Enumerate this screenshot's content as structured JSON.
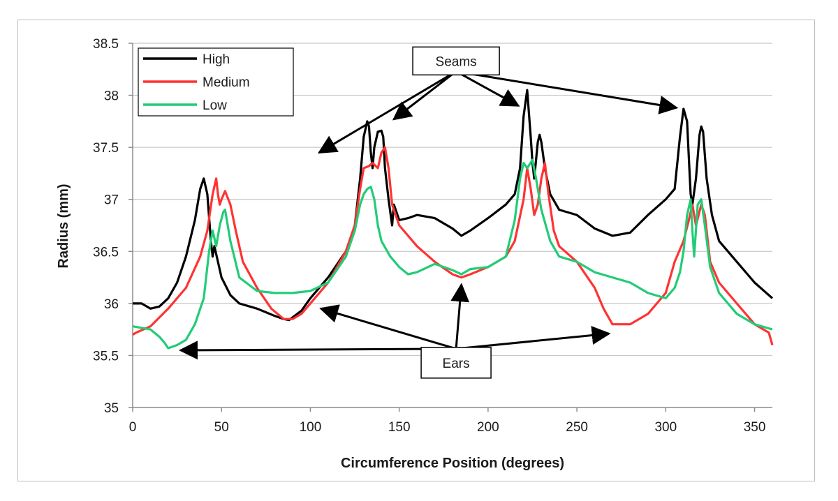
{
  "chart_data": {
    "type": "line",
    "title": "",
    "xlabel": "Circumference Position (degrees)",
    "ylabel": "Radius (mm)",
    "xlim": [
      0,
      360
    ],
    "ylim": [
      35,
      38.5
    ],
    "xticks": [
      0,
      50,
      100,
      150,
      200,
      250,
      300,
      350
    ],
    "yticks": [
      35,
      35.5,
      36,
      36.5,
      37,
      37.5,
      38,
      38.5
    ],
    "grid": "horizontal",
    "legend_position": "top-left",
    "series": [
      {
        "name": "High",
        "color": "#000000",
        "points": [
          [
            0,
            36.0
          ],
          [
            5,
            36.0
          ],
          [
            10,
            35.95
          ],
          [
            15,
            35.97
          ],
          [
            20,
            36.05
          ],
          [
            25,
            36.2
          ],
          [
            30,
            36.45
          ],
          [
            35,
            36.8
          ],
          [
            38,
            37.1
          ],
          [
            40,
            37.2
          ],
          [
            42,
            37.05
          ],
          [
            44,
            36.6
          ],
          [
            45,
            36.45
          ],
          [
            46,
            36.55
          ],
          [
            48,
            36.4
          ],
          [
            50,
            36.25
          ],
          [
            55,
            36.08
          ],
          [
            60,
            36.0
          ],
          [
            70,
            35.95
          ],
          [
            80,
            35.88
          ],
          [
            85,
            35.85
          ],
          [
            88,
            35.84
          ],
          [
            95,
            35.93
          ],
          [
            100,
            36.05
          ],
          [
            110,
            36.25
          ],
          [
            120,
            36.5
          ],
          [
            125,
            36.75
          ],
          [
            128,
            37.2
          ],
          [
            130,
            37.6
          ],
          [
            132,
            37.75
          ],
          [
            133,
            37.7
          ],
          [
            134,
            37.45
          ],
          [
            135,
            37.3
          ],
          [
            136,
            37.5
          ],
          [
            138,
            37.65
          ],
          [
            140,
            37.66
          ],
          [
            141,
            37.6
          ],
          [
            142,
            37.3
          ],
          [
            144,
            37.0
          ],
          [
            146,
            36.75
          ],
          [
            147,
            36.95
          ],
          [
            150,
            36.8
          ],
          [
            155,
            36.82
          ],
          [
            160,
            36.85
          ],
          [
            170,
            36.82
          ],
          [
            180,
            36.72
          ],
          [
            185,
            36.65
          ],
          [
            190,
            36.7
          ],
          [
            200,
            36.82
          ],
          [
            210,
            36.95
          ],
          [
            215,
            37.05
          ],
          [
            218,
            37.3
          ],
          [
            220,
            37.8
          ],
          [
            222,
            38.05
          ],
          [
            224,
            37.6
          ],
          [
            225,
            37.35
          ],
          [
            226,
            37.2
          ],
          [
            228,
            37.55
          ],
          [
            229,
            37.62
          ],
          [
            230,
            37.55
          ],
          [
            232,
            37.3
          ],
          [
            235,
            37.05
          ],
          [
            240,
            36.9
          ],
          [
            250,
            36.85
          ],
          [
            260,
            36.72
          ],
          [
            270,
            36.65
          ],
          [
            280,
            36.68
          ],
          [
            290,
            36.85
          ],
          [
            300,
            37.0
          ],
          [
            305,
            37.1
          ],
          [
            308,
            37.6
          ],
          [
            310,
            37.87
          ],
          [
            312,
            37.75
          ],
          [
            313,
            37.4
          ],
          [
            314,
            37.05
          ],
          [
            315,
            36.95
          ],
          [
            317,
            37.2
          ],
          [
            319,
            37.62
          ],
          [
            320,
            37.7
          ],
          [
            321,
            37.65
          ],
          [
            323,
            37.2
          ],
          [
            326,
            36.85
          ],
          [
            330,
            36.6
          ],
          [
            340,
            36.4
          ],
          [
            350,
            36.2
          ],
          [
            360,
            36.05
          ]
        ]
      },
      {
        "name": "Medium",
        "color": "#ff3333",
        "points": [
          [
            0,
            35.7
          ],
          [
            2,
            35.72
          ],
          [
            10,
            35.78
          ],
          [
            20,
            35.95
          ],
          [
            30,
            36.15
          ],
          [
            38,
            36.45
          ],
          [
            42,
            36.7
          ],
          [
            45,
            37.05
          ],
          [
            47,
            37.2
          ],
          [
            48,
            37.05
          ],
          [
            49,
            36.95
          ],
          [
            50,
            37.0
          ],
          [
            52,
            37.08
          ],
          [
            55,
            36.95
          ],
          [
            58,
            36.7
          ],
          [
            62,
            36.4
          ],
          [
            70,
            36.15
          ],
          [
            78,
            35.95
          ],
          [
            85,
            35.85
          ],
          [
            90,
            35.85
          ],
          [
            95,
            35.9
          ],
          [
            100,
            36.0
          ],
          [
            110,
            36.2
          ],
          [
            120,
            36.5
          ],
          [
            125,
            36.75
          ],
          [
            128,
            37.1
          ],
          [
            130,
            37.3
          ],
          [
            133,
            37.32
          ],
          [
            135,
            37.35
          ],
          [
            138,
            37.3
          ],
          [
            140,
            37.45
          ],
          [
            142,
            37.5
          ],
          [
            144,
            37.3
          ],
          [
            146,
            36.95
          ],
          [
            150,
            36.75
          ],
          [
            160,
            36.55
          ],
          [
            170,
            36.4
          ],
          [
            180,
            36.28
          ],
          [
            185,
            36.25
          ],
          [
            190,
            36.28
          ],
          [
            200,
            36.35
          ],
          [
            210,
            36.45
          ],
          [
            215,
            36.6
          ],
          [
            220,
            37.0
          ],
          [
            222,
            37.3
          ],
          [
            224,
            37.1
          ],
          [
            226,
            36.85
          ],
          [
            228,
            36.95
          ],
          [
            230,
            37.2
          ],
          [
            232,
            37.35
          ],
          [
            234,
            37.05
          ],
          [
            237,
            36.7
          ],
          [
            240,
            36.55
          ],
          [
            250,
            36.4
          ],
          [
            260,
            36.15
          ],
          [
            265,
            35.95
          ],
          [
            270,
            35.8
          ],
          [
            280,
            35.8
          ],
          [
            290,
            35.9
          ],
          [
            300,
            36.1
          ],
          [
            305,
            36.4
          ],
          [
            310,
            36.6
          ],
          [
            313,
            36.8
          ],
          [
            315,
            36.95
          ],
          [
            317,
            36.75
          ],
          [
            320,
            36.95
          ],
          [
            322,
            36.85
          ],
          [
            325,
            36.4
          ],
          [
            330,
            36.2
          ],
          [
            340,
            36.0
          ],
          [
            350,
            35.8
          ],
          [
            358,
            35.72
          ],
          [
            360,
            35.6
          ]
        ]
      },
      {
        "name": "Low",
        "color": "#22cc77",
        "points": [
          [
            0,
            35.78
          ],
          [
            10,
            35.75
          ],
          [
            15,
            35.68
          ],
          [
            18,
            35.62
          ],
          [
            20,
            35.57
          ],
          [
            25,
            35.6
          ],
          [
            30,
            35.65
          ],
          [
            35,
            35.8
          ],
          [
            40,
            36.05
          ],
          [
            43,
            36.5
          ],
          [
            45,
            36.7
          ],
          [
            47,
            36.55
          ],
          [
            49,
            36.75
          ],
          [
            51,
            36.88
          ],
          [
            52,
            36.9
          ],
          [
            55,
            36.6
          ],
          [
            60,
            36.25
          ],
          [
            70,
            36.12
          ],
          [
            80,
            36.1
          ],
          [
            90,
            36.1
          ],
          [
            100,
            36.12
          ],
          [
            110,
            36.2
          ],
          [
            120,
            36.45
          ],
          [
            125,
            36.7
          ],
          [
            128,
            36.95
          ],
          [
            130,
            37.05
          ],
          [
            132,
            37.1
          ],
          [
            134,
            37.12
          ],
          [
            136,
            37.0
          ],
          [
            138,
            36.75
          ],
          [
            140,
            36.6
          ],
          [
            145,
            36.45
          ],
          [
            150,
            36.35
          ],
          [
            155,
            36.28
          ],
          [
            160,
            36.3
          ],
          [
            170,
            36.38
          ],
          [
            180,
            36.32
          ],
          [
            185,
            36.28
          ],
          [
            190,
            36.33
          ],
          [
            200,
            36.35
          ],
          [
            210,
            36.45
          ],
          [
            215,
            36.8
          ],
          [
            218,
            37.2
          ],
          [
            220,
            37.35
          ],
          [
            222,
            37.3
          ],
          [
            225,
            37.38
          ],
          [
            227,
            37.2
          ],
          [
            230,
            36.9
          ],
          [
            235,
            36.6
          ],
          [
            240,
            36.45
          ],
          [
            250,
            36.4
          ],
          [
            260,
            36.3
          ],
          [
            270,
            36.25
          ],
          [
            280,
            36.2
          ],
          [
            290,
            36.1
          ],
          [
            300,
            36.05
          ],
          [
            305,
            36.15
          ],
          [
            308,
            36.3
          ],
          [
            310,
            36.5
          ],
          [
            312,
            36.85
          ],
          [
            314,
            37.0
          ],
          [
            315,
            36.7
          ],
          [
            316,
            36.45
          ],
          [
            318,
            36.95
          ],
          [
            320,
            37.0
          ],
          [
            322,
            36.75
          ],
          [
            325,
            36.35
          ],
          [
            330,
            36.1
          ],
          [
            340,
            35.9
          ],
          [
            350,
            35.8
          ],
          [
            360,
            35.75
          ]
        ]
      }
    ],
    "annotations": [
      {
        "label": "Seams",
        "anchor": [
          182,
          38.33
        ],
        "targets": [
          [
            105,
            37.45
          ],
          [
            147,
            37.77
          ],
          [
            217,
            37.9
          ],
          [
            306,
            37.88
          ]
        ]
      },
      {
        "label": "Ears",
        "anchor": [
          182,
          35.43
        ],
        "targets": [
          [
            27,
            35.55
          ],
          [
            106,
            35.95
          ],
          [
            185,
            36.18
          ],
          [
            268,
            35.71
          ]
        ]
      }
    ]
  }
}
